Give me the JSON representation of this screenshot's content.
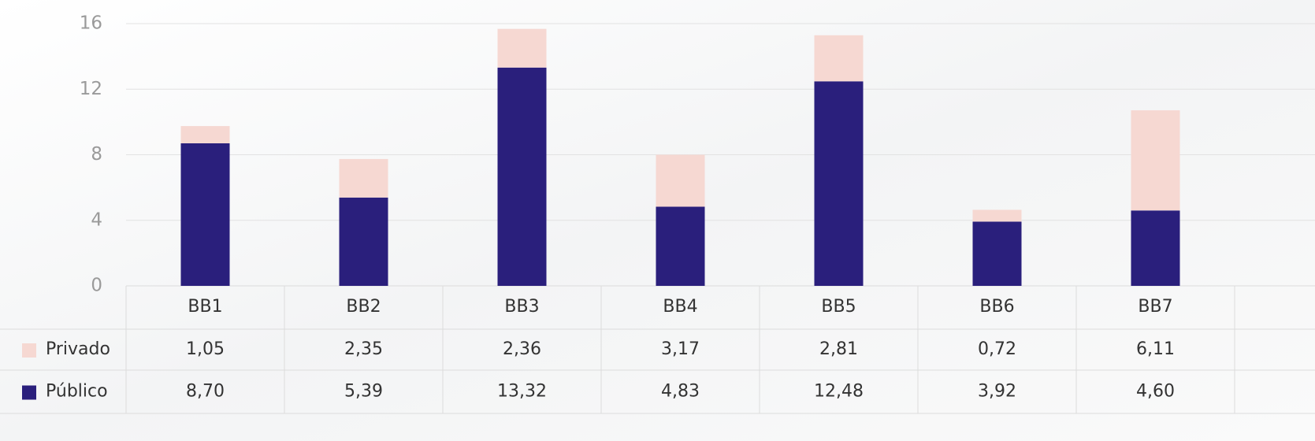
{
  "chart_data": {
    "type": "stacked_bar",
    "categories": [
      "BB1",
      "BB2",
      "BB3",
      "BB4",
      "BB5",
      "BB6",
      "BB7"
    ],
    "series": [
      {
        "name": "Privado",
        "color": "#f6d8d2",
        "values": [
          1.05,
          2.35,
          2.36,
          3.17,
          2.81,
          0.72,
          6.11
        ],
        "value_labels": [
          "1,05",
          "2,35",
          "2,36",
          "3,17",
          "2,81",
          "0,72",
          "6,11"
        ]
      },
      {
        "name": "Público",
        "color": "#2a1f7c",
        "values": [
          8.7,
          5.39,
          13.32,
          4.83,
          12.48,
          3.92,
          4.6
        ],
        "value_labels": [
          "8,70",
          "5,39",
          "13,32",
          "4,83",
          "12,48",
          "3,92",
          "4,60"
        ]
      }
    ],
    "ylim": [
      0,
      16
    ],
    "yticks": [
      0,
      4,
      8,
      12,
      16
    ],
    "grid": true
  }
}
